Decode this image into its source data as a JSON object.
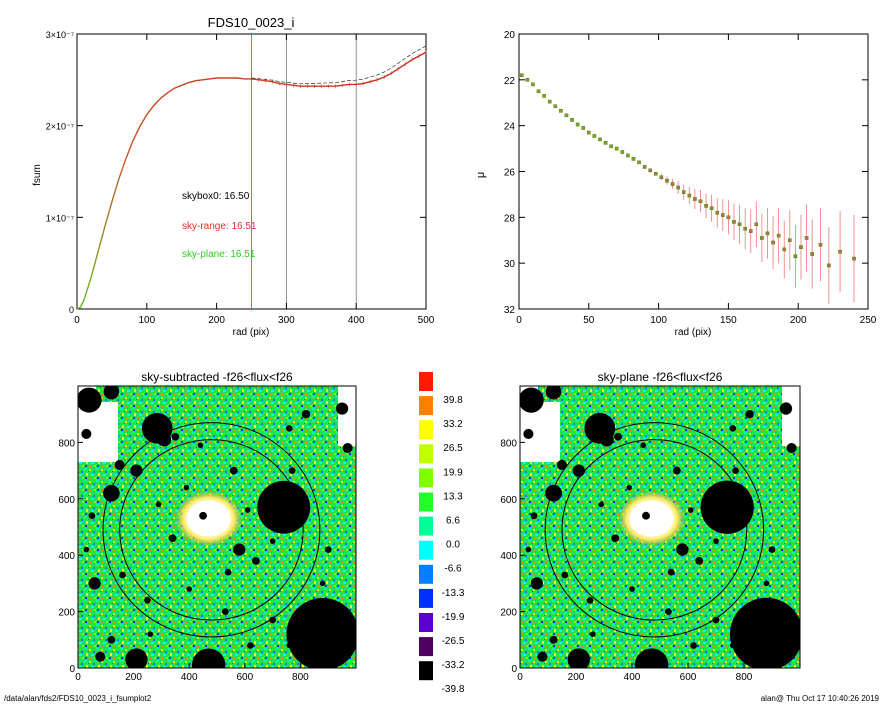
{
  "footer": {
    "path": "/data/alan/fds2/FDS10_0023_i_fsumplot2",
    "user_time": "alan@  Thu Oct 17 10:40:26 2019"
  },
  "chart_data": [
    {
      "type": "line",
      "title": "FDS10_0023_i",
      "xlabel": "rad (pix)",
      "ylabel": "fsum",
      "xlim": [
        0,
        500
      ],
      "ylim": [
        0,
        3e-07
      ],
      "xticks": [
        "0",
        "100",
        "200",
        "300",
        "400",
        "500"
      ],
      "yticks": [
        {
          "v": 0,
          "label": "0"
        },
        {
          "v": 1e-07,
          "label": "1×10⁻⁷"
        },
        {
          "v": 2e-07,
          "label": "2×10⁻⁷"
        },
        {
          "v": 3e-07,
          "label": "3×10⁻⁷"
        }
      ],
      "curve": {
        "x": [
          0,
          5,
          10,
          20,
          30,
          40,
          50,
          60,
          70,
          80,
          90,
          100,
          110,
          120,
          130,
          140,
          150,
          160,
          170,
          180,
          190,
          200,
          210,
          220,
          230,
          240,
          250,
          260,
          270,
          280,
          290,
          300,
          310,
          320,
          330,
          340,
          350,
          360,
          370,
          380,
          390,
          400,
          410,
          420,
          430,
          440,
          450,
          460,
          470,
          480,
          490,
          500
        ],
        "y": [
          0,
          2e-09,
          1e-08,
          3.4e-08,
          6.2e-08,
          9e-08,
          1.17e-07,
          1.42e-07,
          1.64e-07,
          1.83e-07,
          1.99e-07,
          2.12e-07,
          2.22e-07,
          2.3e-07,
          2.36e-07,
          2.41e-07,
          2.44e-07,
          2.47e-07,
          2.49e-07,
          2.5e-07,
          2.51e-07,
          2.52e-07,
          2.52e-07,
          2.52e-07,
          2.52e-07,
          2.51e-07,
          2.51e-07,
          2.5e-07,
          2.49e-07,
          2.48e-07,
          2.46e-07,
          2.45e-07,
          2.44e-07,
          2.43e-07,
          2.43e-07,
          2.43e-07,
          2.43e-07,
          2.43e-07,
          2.43e-07,
          2.44e-07,
          2.45e-07,
          2.45e-07,
          2.46e-07,
          2.48e-07,
          2.5e-07,
          2.53e-07,
          2.57e-07,
          2.62e-07,
          2.67e-07,
          2.72e-07,
          2.76e-07,
          2.8e-07
        ]
      },
      "vlines": [
        {
          "x": 250,
          "color": "#e0302a"
        },
        {
          "x": 300,
          "color": "#777777"
        },
        {
          "x": 400,
          "color": "#777777"
        }
      ],
      "annotations": [
        {
          "text": "skybox0: 16.50",
          "color": "#000000"
        },
        {
          "text": "sky-range: 16.51",
          "color": "#e0302a"
        },
        {
          "text": "sky-plane: 16.51",
          "color": "#33cc22"
        }
      ]
    },
    {
      "type": "scatter",
      "xlabel": "rad (pix)",
      "ylabel": "μ",
      "xlim": [
        0,
        250
      ],
      "ylim": [
        32,
        20
      ],
      "xticks": [
        "0",
        "50",
        "100",
        "150",
        "200",
        "250"
      ],
      "yticks": [
        "20",
        "22",
        "24",
        "26",
        "28",
        "30",
        "32"
      ],
      "points": {
        "x": [
          2,
          6,
          10,
          14,
          18,
          22,
          26,
          30,
          34,
          38,
          42,
          46,
          50,
          54,
          58,
          62,
          66,
          70,
          74,
          78,
          82,
          86,
          90,
          94,
          98,
          102,
          106,
          110,
          114,
          118,
          122,
          126,
          130,
          134,
          138,
          142,
          146,
          150,
          154,
          158,
          162,
          166,
          170,
          174,
          178,
          182,
          186,
          190,
          194,
          198,
          202,
          206,
          210,
          216,
          222,
          230,
          240
        ],
        "y": [
          21.8,
          22.0,
          22.2,
          22.5,
          22.7,
          22.95,
          23.15,
          23.35,
          23.55,
          23.75,
          23.95,
          24.1,
          24.3,
          24.45,
          24.6,
          24.75,
          24.9,
          25.0,
          25.15,
          25.3,
          25.45,
          25.6,
          25.8,
          25.95,
          26.1,
          26.25,
          26.4,
          26.55,
          26.7,
          26.9,
          27.05,
          27.2,
          27.3,
          27.5,
          27.6,
          27.8,
          27.9,
          28.0,
          28.2,
          28.3,
          28.5,
          28.6,
          28.3,
          28.9,
          28.7,
          29.1,
          28.8,
          29.4,
          29.0,
          29.7,
          29.3,
          28.9,
          29.6,
          29.2,
          30.1,
          29.5,
          29.8
        ]
      }
    },
    {
      "type": "heatmap",
      "title": "sky-subtracted -f26<flux<f26",
      "xlim": [
        0,
        1000
      ],
      "ylim": [
        0,
        1000
      ],
      "xticks": [
        "0",
        "200",
        "400",
        "600",
        "800"
      ],
      "yticks": [
        "0",
        "200",
        "400",
        "600",
        "800"
      ]
    },
    {
      "type": "heatmap",
      "title": "sky-plane -f26<flux<f26",
      "xlim": [
        0,
        1000
      ],
      "ylim": [
        0,
        1000
      ],
      "xticks": [
        "0",
        "200",
        "400",
        "600",
        "800"
      ],
      "yticks": [
        "0",
        "200",
        "400",
        "600",
        "800"
      ]
    }
  ],
  "colorbar": {
    "labels": [
      "39.8",
      "33.2",
      "26.5",
      "19.9",
      "13.3",
      "6.6",
      "0.0",
      "-6.6",
      "-13.3",
      "-19.9",
      "-26.5",
      "-33.2",
      "-39.8"
    ],
    "colors": [
      "#ff1a00",
      "#ff8000",
      "#ffff00",
      "#bfff00",
      "#80ff00",
      "#22ff22",
      "#00ff99",
      "#00ffff",
      "#0080ff",
      "#0030ff",
      "#5a00d0",
      "#500060",
      "#000000"
    ]
  },
  "map_objects": [
    {
      "x": 285,
      "y": 850,
      "r": 55
    },
    {
      "x": 310,
      "y": 810,
      "r": 25
    },
    {
      "x": 120,
      "y": 620,
      "r": 30
    },
    {
      "x": 40,
      "y": 950,
      "r": 45
    },
    {
      "x": 120,
      "y": 980,
      "r": 28
    },
    {
      "x": 150,
      "y": 720,
      "r": 18
    },
    {
      "x": 30,
      "y": 830,
      "r": 18
    },
    {
      "x": 210,
      "y": 700,
      "r": 22
    },
    {
      "x": 350,
      "y": 820,
      "r": 14
    },
    {
      "x": 390,
      "y": 640,
      "r": 10
    },
    {
      "x": 450,
      "y": 540,
      "r": 14
    },
    {
      "x": 340,
      "y": 460,
      "r": 14
    },
    {
      "x": 580,
      "y": 420,
      "r": 22
    },
    {
      "x": 640,
      "y": 380,
      "r": 14
    },
    {
      "x": 540,
      "y": 340,
      "r": 12
    },
    {
      "x": 700,
      "y": 450,
      "r": 10
    },
    {
      "x": 770,
      "y": 700,
      "r": 12
    },
    {
      "x": 760,
      "y": 850,
      "r": 12
    },
    {
      "x": 820,
      "y": 900,
      "r": 15
    },
    {
      "x": 950,
      "y": 920,
      "r": 22
    },
    {
      "x": 970,
      "y": 780,
      "r": 18
    },
    {
      "x": 50,
      "y": 540,
      "r": 12
    },
    {
      "x": 60,
      "y": 300,
      "r": 22
    },
    {
      "x": 160,
      "y": 330,
      "r": 12
    },
    {
      "x": 120,
      "y": 100,
      "r": 14
    },
    {
      "x": 80,
      "y": 40,
      "r": 18
    },
    {
      "x": 210,
      "y": 30,
      "r": 40
    },
    {
      "x": 470,
      "y": 10,
      "r": 40
    },
    {
      "x": 250,
      "y": 240,
      "r": 12
    },
    {
      "x": 530,
      "y": 200,
      "r": 12
    },
    {
      "x": 700,
      "y": 170,
      "r": 12
    },
    {
      "x": 800,
      "y": 180,
      "r": 14
    },
    {
      "x": 680,
      "y": 620,
      "r": 10
    },
    {
      "x": 560,
      "y": 700,
      "r": 14
    },
    {
      "x": 440,
      "y": 790,
      "r": 10
    },
    {
      "x": 30,
      "y": 420,
      "r": 10
    },
    {
      "x": 290,
      "y": 580,
      "r": 10
    },
    {
      "x": 610,
      "y": 560,
      "r": 10
    },
    {
      "x": 400,
      "y": 280,
      "r": 10
    },
    {
      "x": 880,
      "y": 300,
      "r": 10
    },
    {
      "x": 900,
      "y": 420,
      "r": 12
    },
    {
      "x": 260,
      "y": 120,
      "r": 10
    },
    {
      "x": 620,
      "y": 80,
      "r": 12
    },
    {
      "x": 760,
      "y": 80,
      "r": 10
    }
  ],
  "map_big_objects": [
    {
      "x": 740,
      "y": 570,
      "r": 95
    },
    {
      "x": 880,
      "y": 120,
      "r": 130
    },
    {
      "x": 470,
      "y": 10,
      "r": 60
    }
  ],
  "map_ellipses": [
    {
      "cx": 480,
      "cy": 490,
      "rx": 330,
      "ry": 320
    },
    {
      "cx": 480,
      "cy": 490,
      "rx": 390,
      "ry": 380
    }
  ]
}
